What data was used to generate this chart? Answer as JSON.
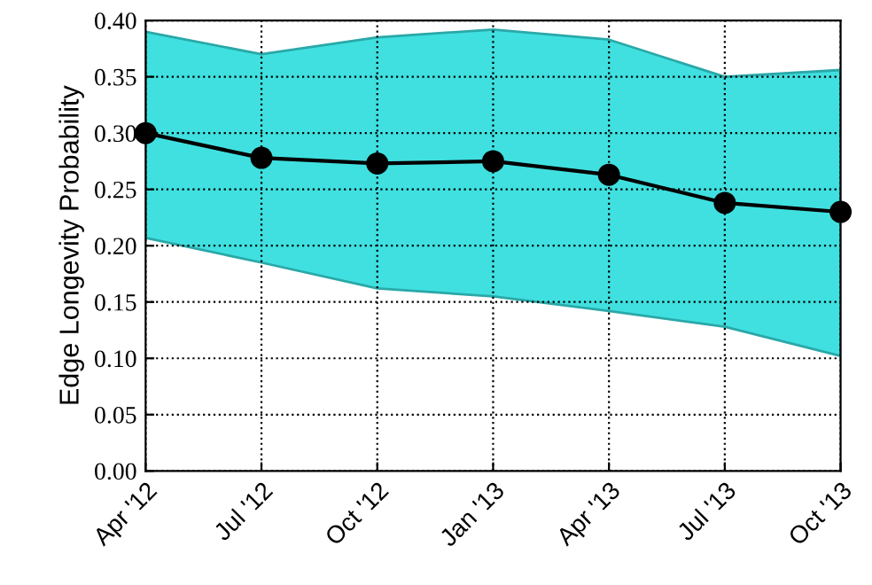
{
  "chart_data": {
    "type": "line",
    "ylabel": "Edge Longevity Probability",
    "categories": [
      "Apr '12",
      "Jul '12",
      "Oct '12",
      "Jan '13",
      "Apr '13",
      "Jul '13",
      "Oct '13"
    ],
    "series": [
      {
        "color": "#000000",
        "values": [
          0.3,
          0.278,
          0.273,
          0.275,
          0.263,
          0.238,
          0.23
        ],
        "lower": [
          0.207,
          0.185,
          0.162,
          0.155,
          0.142,
          0.128,
          0.102
        ],
        "upper": [
          0.39,
          0.37,
          0.385,
          0.392,
          0.383,
          0.35,
          0.356
        ]
      }
    ],
    "ylim": [
      0,
      0.4
    ],
    "yticks": [
      {
        "value": 0,
        "label": "0.00"
      },
      {
        "value": 0.05,
        "label": "0.05"
      },
      {
        "value": 0.1,
        "label": "0.10"
      },
      {
        "value": 0.15,
        "label": "0.15"
      },
      {
        "value": 0.2,
        "label": "0.20"
      },
      {
        "value": 0.25,
        "label": "0.25"
      },
      {
        "value": 0.3,
        "label": "0.30"
      },
      {
        "value": 0.35,
        "label": "0.35"
      },
      {
        "value": 0.4,
        "label": "0.40"
      }
    ],
    "grid": true,
    "marker": "circle",
    "line_style": "solid"
  }
}
